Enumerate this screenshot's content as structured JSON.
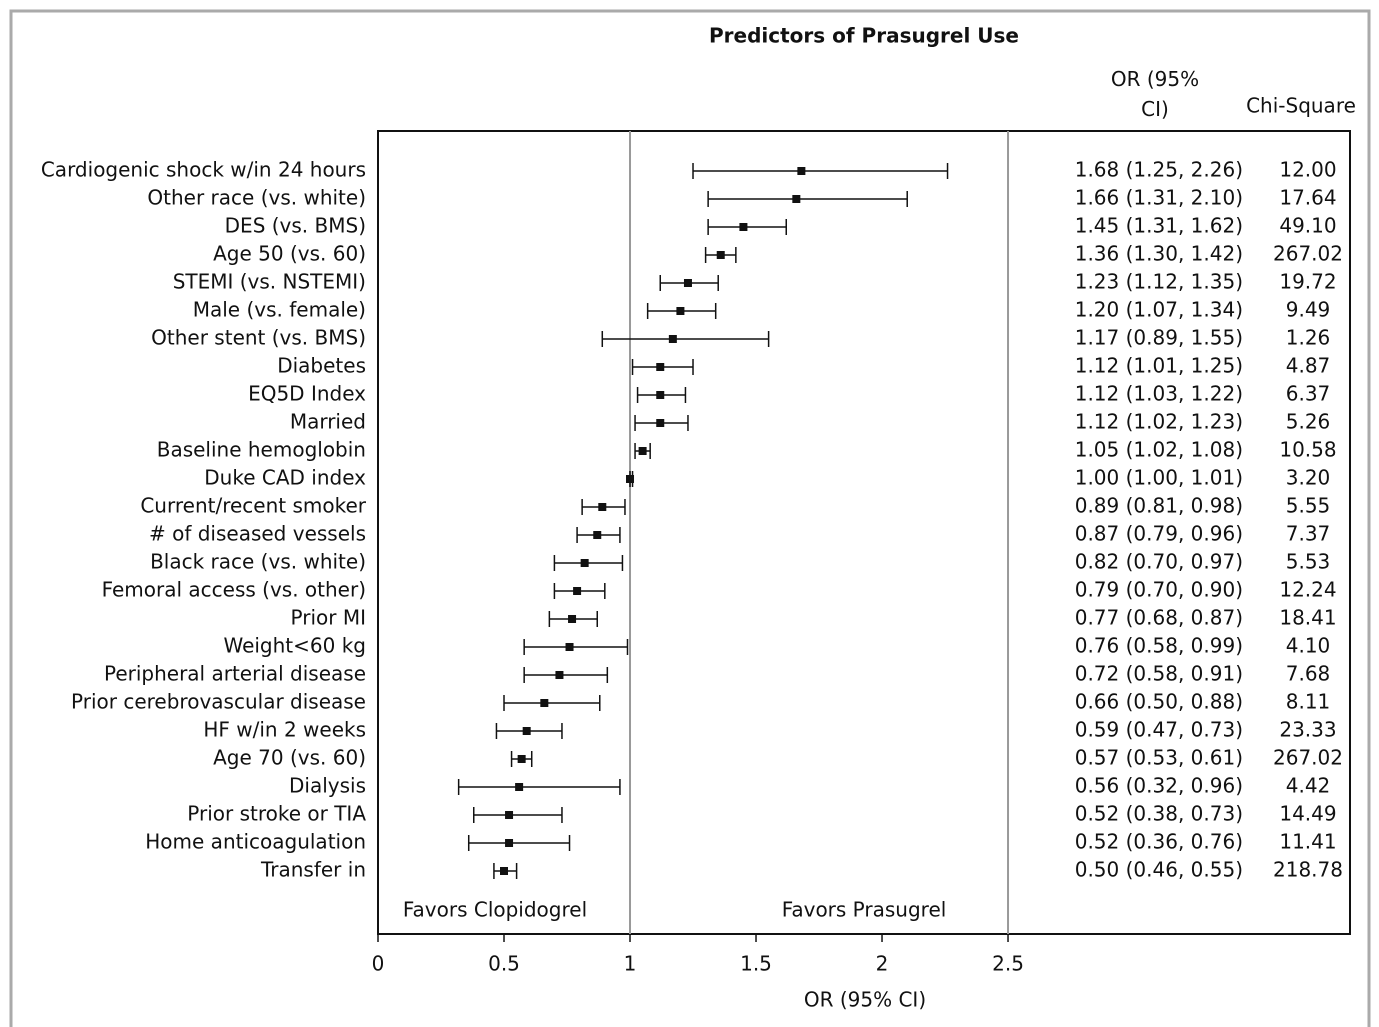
{
  "chart_data": {
    "type": "forest",
    "title": "Predictors of Prasugrel Use",
    "x_label": "OR (95% CI)",
    "or_header": "OR (95% CI)",
    "chi_header": "Chi-Square",
    "annotations": [
      "Favors Clopidogrel",
      "Favors Prasugrel"
    ],
    "categories": [
      "Cardiogenic shock w/in 24 hours",
      "Other race (vs. white)",
      "DES (vs. BMS)",
      "Age 50 (vs. 60)",
      "STEMI (vs. NSTEMI)",
      "Male (vs. female)",
      "Other stent (vs. BMS)",
      "Diabetes",
      "EQ5D Index",
      "Married",
      "Baseline hemoglobin",
      "Duke CAD index",
      "Current/recent smoker",
      "# of diseased vessels",
      "Black race (vs. white)",
      "Femoral access (vs. other)",
      "Prior MI",
      "Weight<60 kg",
      "Peripheral arterial disease",
      "Prior cerebrovascular disease",
      "HF w/in 2 weeks",
      "Age 70 (vs. 60)",
      "Dialysis",
      "Prior stroke or TIA",
      "Home anticoagulation",
      "Transfer in"
    ],
    "values": [
      1.68,
      1.66,
      1.45,
      1.36,
      1.23,
      1.2,
      1.17,
      1.12,
      1.12,
      1.12,
      1.05,
      1.0,
      0.89,
      0.87,
      0.82,
      0.79,
      0.77,
      0.76,
      0.72,
      0.66,
      0.59,
      0.57,
      0.56,
      0.52,
      0.52,
      0.5
    ],
    "lower": [
      1.25,
      1.31,
      1.31,
      1.3,
      1.12,
      1.07,
      0.89,
      1.01,
      1.03,
      1.02,
      1.02,
      1.0,
      0.81,
      0.79,
      0.7,
      0.7,
      0.68,
      0.58,
      0.58,
      0.5,
      0.47,
      0.53,
      0.32,
      0.38,
      0.36,
      0.46
    ],
    "upper": [
      2.26,
      2.1,
      1.62,
      1.42,
      1.35,
      1.34,
      1.55,
      1.25,
      1.22,
      1.23,
      1.08,
      1.01,
      0.98,
      0.96,
      0.97,
      0.9,
      0.87,
      0.99,
      0.91,
      0.88,
      0.73,
      0.61,
      0.96,
      0.73,
      0.76,
      0.55
    ],
    "value_labels": [
      "1.68 (1.25, 2.26)",
      "1.66 (1.31, 2.10)",
      "1.45 (1.31, 1.62)",
      "1.36 (1.30, 1.42)",
      "1.23 (1.12, 1.35)",
      "1.20 (1.07, 1.34)",
      "1.17 (0.89, 1.55)",
      "1.12 (1.01, 1.25)",
      "1.12 (1.03, 1.22)",
      "1.12 (1.02, 1.23)",
      "1.05 (1.02, 1.08)",
      "1.00 (1.00, 1.01)",
      "0.89 (0.81, 0.98)",
      "0.87 (0.79, 0.96)",
      "0.82 (0.70, 0.97)",
      "0.79 (0.70, 0.90)",
      "0.77 (0.68, 0.87)",
      "0.76 (0.58, 0.99)",
      "0.72 (0.58, 0.91)",
      "0.66 (0.50, 0.88)",
      "0.59 (0.47, 0.73)",
      "0.57 (0.53, 0.61)",
      "0.56 (0.32, 0.96)",
      "0.52 (0.38, 0.73)",
      "0.52 (0.36, 0.76)",
      "0.50 (0.46, 0.55)"
    ],
    "chi_square": [
      "12.00",
      "17.64",
      "49.10",
      "267.02",
      "19.72",
      "9.49",
      "1.26",
      "4.87",
      "6.37",
      "5.26",
      "10.58",
      "3.20",
      "5.55",
      "7.37",
      "5.53",
      "12.24",
      "18.41",
      "4.10",
      "7.68",
      "8.11",
      "23.33",
      "267.02",
      "4.42",
      "14.49",
      "11.41",
      "218.78"
    ],
    "xlim": [
      0,
      3.857
    ],
    "xticks": [
      0,
      0.5,
      1,
      1.5,
      2,
      2.5
    ],
    "reference_lines": [
      1,
      2.5
    ],
    "color": "#111111"
  }
}
